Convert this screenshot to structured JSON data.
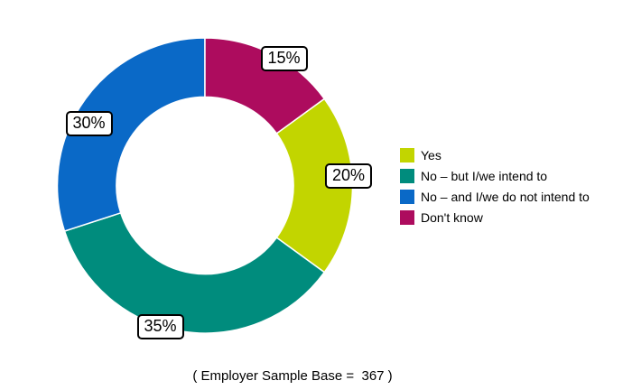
{
  "chart_data": {
    "type": "pie",
    "subtype": "donut",
    "title": "",
    "caption": "( Employer Sample Base =  367 )",
    "legend_position": "right",
    "direction": "clockwise",
    "start_angle_deg_cw_from_top": 54,
    "donut_hole_ratio": 0.6,
    "segments": [
      {
        "label": "Yes",
        "value": 20,
        "percent_label": "20%",
        "color": "#C2D500"
      },
      {
        "label": "No – but I/we intend to",
        "value": 35,
        "percent_label": "35%",
        "color": "#008C7D"
      },
      {
        "label": "No – and I/we do not intend to",
        "value": 30,
        "percent_label": "30%",
        "color": "#0A69C7"
      },
      {
        "label": "Don't know",
        "value": 15,
        "percent_label": "15%",
        "color": "#AD0C5E"
      }
    ]
  }
}
